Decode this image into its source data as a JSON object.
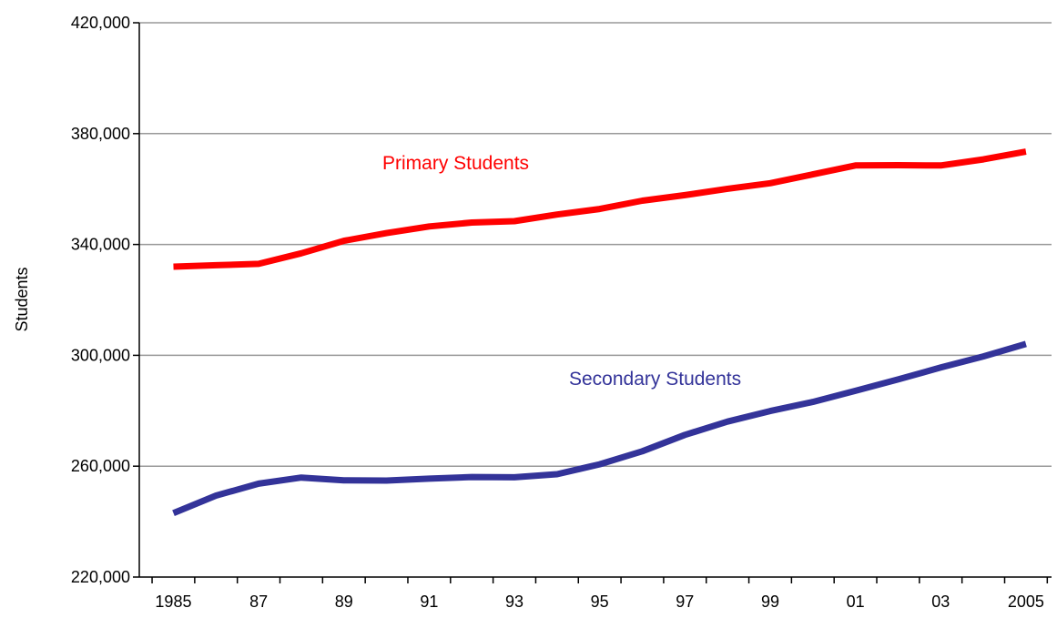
{
  "chart_data": {
    "type": "line",
    "ylabel": "Students",
    "xlabel": "",
    "ylim": [
      220000,
      420000
    ],
    "y_ticks": [
      220000,
      260000,
      300000,
      340000,
      380000,
      420000
    ],
    "y_tick_labels": [
      "220,000",
      "260,000",
      "300,000",
      "340,000",
      "380,000",
      "420,000"
    ],
    "x": [
      1985,
      1986,
      1987,
      1988,
      1989,
      1990,
      1991,
      1992,
      1993,
      1994,
      1995,
      1996,
      1997,
      1998,
      1999,
      2000,
      2001,
      2002,
      2003,
      2004,
      2005
    ],
    "x_tick_labels": [
      "1985",
      "87",
      "89",
      "91",
      "93",
      "95",
      "97",
      "99",
      "01",
      "03",
      "2005"
    ],
    "x_tick_values": [
      1985,
      1987,
      1989,
      1991,
      1993,
      1995,
      1997,
      1999,
      2001,
      2003,
      2005
    ],
    "grid": true,
    "series": [
      {
        "name": "Primary Students",
        "color": "#ff0000",
        "values": [
          332000,
          332500,
          333000,
          336800,
          341300,
          344100,
          346500,
          347900,
          348400,
          350800,
          352800,
          355800,
          357800,
          360100,
          362100,
          365300,
          368500,
          368600,
          368500,
          370700,
          373500
        ]
      },
      {
        "name": "Secondary Students",
        "color": "#333399",
        "values": [
          243100,
          249400,
          253700,
          255900,
          254900,
          254800,
          255500,
          256100,
          256000,
          257100,
          260700,
          265400,
          271300,
          276100,
          279900,
          283200,
          287200,
          291300,
          295600,
          299600,
          304100
        ]
      }
    ]
  }
}
